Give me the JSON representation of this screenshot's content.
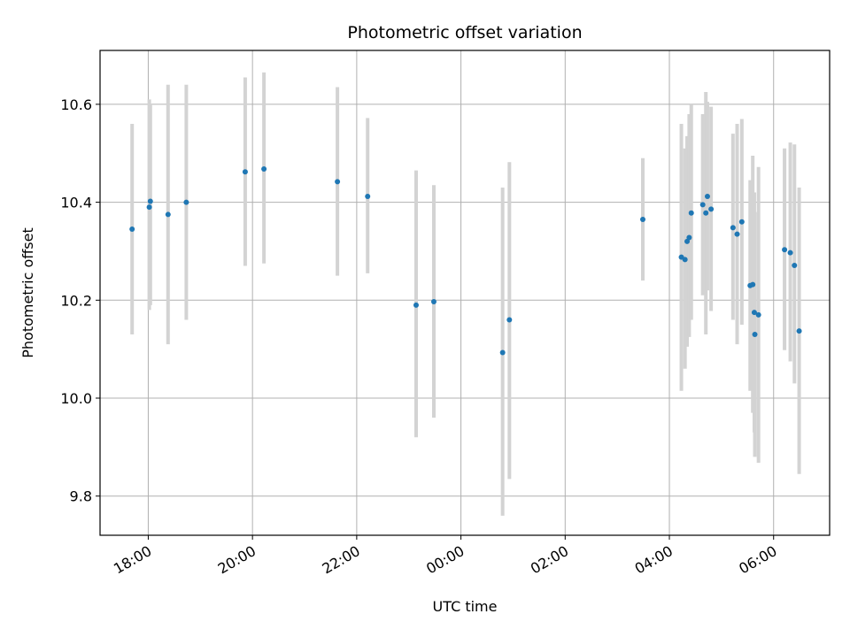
{
  "chart_data": {
    "type": "scatter",
    "title": "Photometric offset variation",
    "xlabel": "UTC time",
    "ylabel": "Photometric offset",
    "grid": true,
    "xaxis_unit": "hours after 00:00 (negative = previous day)",
    "x_ticks": [
      {
        "value": -6,
        "label": "18:00"
      },
      {
        "value": -4,
        "label": "20:00"
      },
      {
        "value": -2,
        "label": "22:00"
      },
      {
        "value": 0,
        "label": "00:00"
      },
      {
        "value": 2,
        "label": "02:00"
      },
      {
        "value": 4,
        "label": "04:00"
      },
      {
        "value": 6,
        "label": "06:00"
      }
    ],
    "y_ticks": [
      {
        "value": 9.8,
        "label": "9.8"
      },
      {
        "value": 10.0,
        "label": "10.0"
      },
      {
        "value": 10.2,
        "label": "10.2"
      },
      {
        "value": 10.4,
        "label": "10.4"
      },
      {
        "value": 10.6,
        "label": "10.6"
      }
    ],
    "xlim": [
      -6.925,
      7.075
    ],
    "ylim": [
      9.72,
      10.71
    ],
    "colors": {
      "points": "#1f77b4",
      "errorbars": "#d3d3d3",
      "grid": "#b0b0b0"
    },
    "points": [
      {
        "x": -6.31,
        "y": 10.345,
        "ylow": 10.13,
        "yhigh": 10.56
      },
      {
        "x": -5.98,
        "y": 10.39,
        "ylow": 10.18,
        "yhigh": 10.61
      },
      {
        "x": -5.96,
        "y": 10.402,
        "ylow": 10.19,
        "yhigh": 10.6
      },
      {
        "x": -5.62,
        "y": 10.375,
        "ylow": 10.11,
        "yhigh": 10.64
      },
      {
        "x": -5.27,
        "y": 10.4,
        "ylow": 10.16,
        "yhigh": 10.64
      },
      {
        "x": -4.14,
        "y": 10.462,
        "ylow": 10.27,
        "yhigh": 10.655
      },
      {
        "x": -3.78,
        "y": 10.468,
        "ylow": 10.275,
        "yhigh": 10.665
      },
      {
        "x": -2.37,
        "y": 10.442,
        "ylow": 10.25,
        "yhigh": 10.635
      },
      {
        "x": -1.79,
        "y": 10.412,
        "ylow": 10.255,
        "yhigh": 10.572
      },
      {
        "x": -0.86,
        "y": 10.19,
        "ylow": 9.92,
        "yhigh": 10.465
      },
      {
        "x": -0.52,
        "y": 10.197,
        "ylow": 9.96,
        "yhigh": 10.435
      },
      {
        "x": 0.8,
        "y": 10.093,
        "ylow": 9.76,
        "yhigh": 10.43
      },
      {
        "x": 0.93,
        "y": 10.16,
        "ylow": 9.835,
        "yhigh": 10.482
      },
      {
        "x": 3.49,
        "y": 10.365,
        "ylow": 10.24,
        "yhigh": 10.49
      },
      {
        "x": 4.23,
        "y": 10.288,
        "ylow": 10.015,
        "yhigh": 10.56
      },
      {
        "x": 4.3,
        "y": 10.283,
        "ylow": 10.06,
        "yhigh": 10.51
      },
      {
        "x": 4.34,
        "y": 10.32,
        "ylow": 10.105,
        "yhigh": 10.535
      },
      {
        "x": 4.38,
        "y": 10.328,
        "ylow": 10.125,
        "yhigh": 10.58
      },
      {
        "x": 4.42,
        "y": 10.378,
        "ylow": 10.16,
        "yhigh": 10.6
      },
      {
        "x": 4.64,
        "y": 10.395,
        "ylow": 10.21,
        "yhigh": 10.58
      },
      {
        "x": 4.7,
        "y": 10.378,
        "ylow": 10.13,
        "yhigh": 10.625
      },
      {
        "x": 4.73,
        "y": 10.412,
        "ylow": 10.22,
        "yhigh": 10.605
      },
      {
        "x": 4.8,
        "y": 10.386,
        "ylow": 10.178,
        "yhigh": 10.595
      },
      {
        "x": 5.22,
        "y": 10.348,
        "ylow": 10.16,
        "yhigh": 10.54
      },
      {
        "x": 5.3,
        "y": 10.335,
        "ylow": 10.11,
        "yhigh": 10.56
      },
      {
        "x": 5.39,
        "y": 10.36,
        "ylow": 10.15,
        "yhigh": 10.57
      },
      {
        "x": 5.55,
        "y": 10.23,
        "ylow": 10.015,
        "yhigh": 10.445
      },
      {
        "x": 5.6,
        "y": 10.232,
        "ylow": 9.97,
        "yhigh": 10.495
      },
      {
        "x": 5.63,
        "y": 10.175,
        "ylow": 9.93,
        "yhigh": 10.42
      },
      {
        "x": 5.64,
        "y": 10.13,
        "ylow": 9.88,
        "yhigh": 10.38
      },
      {
        "x": 5.71,
        "y": 10.17,
        "ylow": 9.868,
        "yhigh": 10.472
      },
      {
        "x": 6.21,
        "y": 10.303,
        "ylow": 10.098,
        "yhigh": 10.51
      },
      {
        "x": 6.32,
        "y": 10.297,
        "ylow": 10.075,
        "yhigh": 10.522
      },
      {
        "x": 6.4,
        "y": 10.271,
        "ylow": 10.03,
        "yhigh": 10.518
      },
      {
        "x": 6.49,
        "y": 10.137,
        "ylow": 9.845,
        "yhigh": 10.43
      }
    ]
  }
}
